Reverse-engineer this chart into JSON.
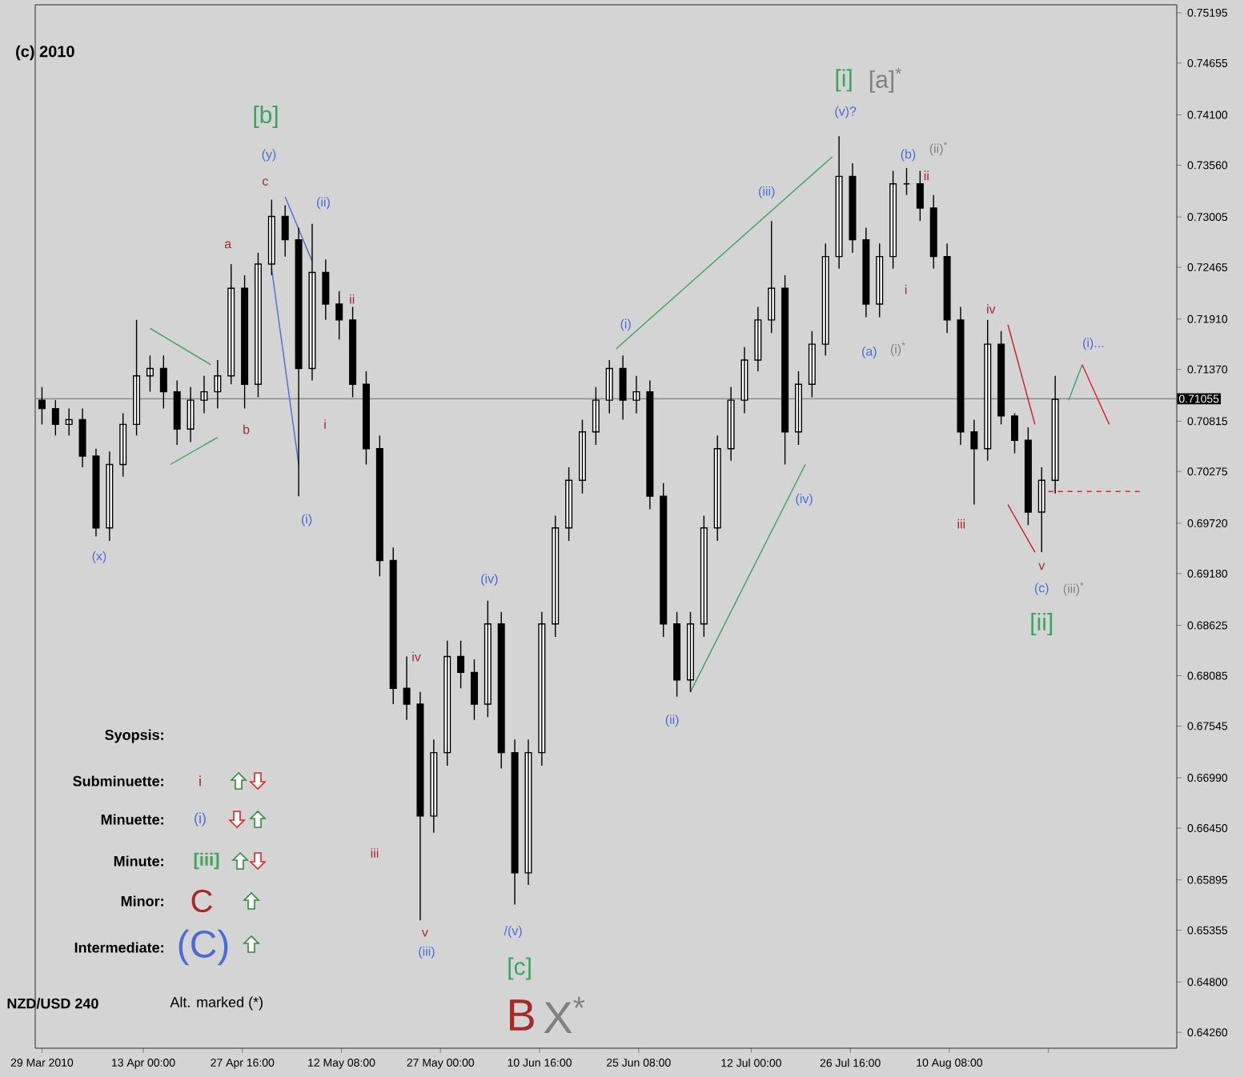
{
  "chart_data": {
    "type": "candlestick",
    "title": "(c) 2010",
    "x": [
      "2010-03-29",
      "2010-03-31",
      "2010-04-02",
      "2010-04-04",
      "2010-04-06",
      "2010-04-08",
      "2010-04-10",
      "2010-04-12",
      "2010-04-14",
      "2010-04-16",
      "2010-04-18",
      "2010-04-20",
      "2010-04-22",
      "2010-04-24",
      "2010-04-26",
      "2010-04-28",
      "2010-04-30",
      "2010-05-02",
      "2010-05-04",
      "2010-05-06",
      "2010-05-08",
      "2010-05-10",
      "2010-05-12",
      "2010-05-14",
      "2010-05-16",
      "2010-05-18",
      "2010-05-20",
      "2010-05-22",
      "2010-05-24",
      "2010-05-26",
      "2010-05-28",
      "2010-05-30",
      "2010-06-01",
      "2010-06-03",
      "2010-06-05",
      "2010-06-07",
      "2010-06-09",
      "2010-06-11",
      "2010-06-13",
      "2010-06-15",
      "2010-06-17",
      "2010-06-19",
      "2010-06-21",
      "2010-06-23",
      "2010-06-25",
      "2010-06-27",
      "2010-06-29",
      "2010-07-01",
      "2010-07-03",
      "2010-07-05",
      "2010-07-07",
      "2010-07-09",
      "2010-07-11",
      "2010-07-13",
      "2010-07-15",
      "2010-07-17",
      "2010-07-19",
      "2010-07-21",
      "2010-07-23",
      "2010-07-25",
      "2010-07-27",
      "2010-07-29",
      "2010-07-31",
      "2010-08-02",
      "2010-08-04",
      "2010-08-06",
      "2010-08-08",
      "2010-08-10",
      "2010-08-12",
      "2010-08-14",
      "2010-08-16",
      "2010-08-18",
      "2010-08-20",
      "2010-08-22",
      "2010-08-24",
      "2010-08-26"
    ],
    "ohlc": [
      [
        0.7104,
        0.7118,
        0.7078,
        0.7095
      ],
      [
        0.7095,
        0.7104,
        0.7066,
        0.7078
      ],
      [
        0.7078,
        0.7095,
        0.7066,
        0.7083
      ],
      [
        0.7083,
        0.7095,
        0.7032,
        0.7044
      ],
      [
        0.7044,
        0.7052,
        0.6958,
        0.6967
      ],
      [
        0.6967,
        0.7049,
        0.6953,
        0.7035
      ],
      [
        0.7035,
        0.709,
        0.7022,
        0.7078
      ],
      [
        0.7078,
        0.719,
        0.7066,
        0.713
      ],
      [
        0.713,
        0.7152,
        0.7113,
        0.7138
      ],
      [
        0.7138,
        0.7152,
        0.7095,
        0.7113
      ],
      [
        0.7113,
        0.7125,
        0.7056,
        0.7073
      ],
      [
        0.7073,
        0.7118,
        0.7059,
        0.7104
      ],
      [
        0.7104,
        0.713,
        0.709,
        0.7113
      ],
      [
        0.7113,
        0.7147,
        0.7095,
        0.713
      ],
      [
        0.713,
        0.725,
        0.7121,
        0.7224
      ],
      [
        0.7224,
        0.7238,
        0.7095,
        0.7121
      ],
      [
        0.7121,
        0.7262,
        0.7107,
        0.725
      ],
      [
        0.725,
        0.7319,
        0.7238,
        0.7301
      ],
      [
        0.7301,
        0.7313,
        0.7258,
        0.7276
      ],
      [
        0.7276,
        0.7289,
        0.7001,
        0.7138
      ],
      [
        0.7138,
        0.7293,
        0.7125,
        0.7241
      ],
      [
        0.7241,
        0.7255,
        0.719,
        0.7207
      ],
      [
        0.7207,
        0.7221,
        0.7169,
        0.719
      ],
      [
        0.719,
        0.7204,
        0.7107,
        0.7121
      ],
      [
        0.7121,
        0.7135,
        0.7035,
        0.7052
      ],
      [
        0.7052,
        0.7066,
        0.6915,
        0.6932
      ],
      [
        0.6932,
        0.6946,
        0.6778,
        0.6795
      ],
      [
        0.6795,
        0.6829,
        0.6761,
        0.6778
      ],
      [
        0.6778,
        0.6791,
        0.6546,
        0.6658
      ],
      [
        0.6658,
        0.674,
        0.664,
        0.6726
      ],
      [
        0.6726,
        0.6846,
        0.6712,
        0.6829
      ],
      [
        0.6829,
        0.6846,
        0.6795,
        0.6812
      ],
      [
        0.6812,
        0.6826,
        0.6761,
        0.6778
      ],
      [
        0.6778,
        0.6889,
        0.6764,
        0.6864
      ],
      [
        0.6864,
        0.6877,
        0.6709,
        0.6726
      ],
      [
        0.6726,
        0.674,
        0.6563,
        0.6597
      ],
      [
        0.6597,
        0.674,
        0.6584,
        0.6726
      ],
      [
        0.6726,
        0.6877,
        0.6712,
        0.6864
      ],
      [
        0.6864,
        0.698,
        0.685,
        0.6967
      ],
      [
        0.6967,
        0.7032,
        0.6953,
        0.7018
      ],
      [
        0.7018,
        0.7083,
        0.7004,
        0.707
      ],
      [
        0.707,
        0.7118,
        0.7056,
        0.7104
      ],
      [
        0.7104,
        0.7147,
        0.709,
        0.7138
      ],
      [
        0.7138,
        0.7152,
        0.7083,
        0.7104
      ],
      [
        0.7104,
        0.713,
        0.709,
        0.7113
      ],
      [
        0.7113,
        0.7125,
        0.6987,
        0.7001
      ],
      [
        0.7001,
        0.7015,
        0.685,
        0.6864
      ],
      [
        0.6864,
        0.6877,
        0.6786,
        0.6804
      ],
      [
        0.6804,
        0.6877,
        0.6791,
        0.6864
      ],
      [
        0.6864,
        0.698,
        0.685,
        0.6967
      ],
      [
        0.6967,
        0.7066,
        0.6953,
        0.7052
      ],
      [
        0.7052,
        0.7118,
        0.7039,
        0.7104
      ],
      [
        0.7104,
        0.7161,
        0.709,
        0.7147
      ],
      [
        0.7147,
        0.7204,
        0.7135,
        0.719
      ],
      [
        0.719,
        0.7296,
        0.7176,
        0.7224
      ],
      [
        0.7224,
        0.7238,
        0.7035,
        0.707
      ],
      [
        0.707,
        0.7135,
        0.7056,
        0.7121
      ],
      [
        0.7121,
        0.7178,
        0.7107,
        0.7164
      ],
      [
        0.7164,
        0.7272,
        0.7152,
        0.7258
      ],
      [
        0.7258,
        0.7387,
        0.7245,
        0.7344
      ],
      [
        0.7344,
        0.7358,
        0.7262,
        0.7276
      ],
      [
        0.7276,
        0.7289,
        0.7193,
        0.7207
      ],
      [
        0.7207,
        0.7272,
        0.7193,
        0.7258
      ],
      [
        0.7258,
        0.735,
        0.7245,
        0.7336
      ],
      [
        0.7336,
        0.7353,
        0.7324,
        0.7336
      ],
      [
        0.7336,
        0.735,
        0.7296,
        0.731
      ],
      [
        0.731,
        0.7324,
        0.7245,
        0.7258
      ],
      [
        0.7258,
        0.7272,
        0.7176,
        0.719
      ],
      [
        0.719,
        0.7204,
        0.7056,
        0.707
      ],
      [
        0.707,
        0.7083,
        0.6992,
        0.7052
      ],
      [
        0.7052,
        0.719,
        0.7039,
        0.7164
      ],
      [
        0.7164,
        0.7178,
        0.7078,
        0.7087
      ],
      [
        0.7087,
        0.709,
        0.7047,
        0.7061
      ],
      [
        0.7061,
        0.7075,
        0.697,
        0.6984
      ],
      [
        0.6984,
        0.7032,
        0.6941,
        0.7018
      ],
      [
        0.7018,
        0.713,
        0.7004,
        0.7105
      ]
    ],
    "series": [
      {
        "type": "line",
        "color": "#3ba55c",
        "x": [
          "2010-04-14",
          "2010-04-23"
        ],
        "values": [
          0.7181,
          0.7142
        ]
      },
      {
        "type": "line",
        "color": "#3ba55c",
        "x": [
          "2010-04-17",
          "2010-04-24"
        ],
        "values": [
          0.7035,
          0.7064
        ]
      },
      {
        "type": "line",
        "color": "#3ba55c",
        "x": [
          "2010-06-22",
          "2010-07-24"
        ],
        "values": [
          0.7159,
          0.7365
        ]
      },
      {
        "type": "line",
        "color": "#3ba55c",
        "x": [
          "2010-07-03",
          "2010-07-20"
        ],
        "values": [
          0.6791,
          0.7035
        ]
      },
      {
        "type": "line",
        "color": "#3ba55c",
        "x": [
          "2010-08-28",
          "2010-08-30"
        ],
        "values": [
          0.7104,
          0.7142
        ]
      },
      {
        "type": "line",
        "color": "#4a6cd4",
        "x": [
          "2010-05-04",
          "2010-05-08"
        ],
        "values": [
          0.7322,
          0.7253
        ]
      },
      {
        "type": "line",
        "color": "#4a6cd4",
        "x": [
          "2010-05-02",
          "2010-05-06"
        ],
        "values": [
          0.7245,
          0.7035
        ]
      },
      {
        "type": "line",
        "color": "#c02020",
        "x": [
          "2010-08-19",
          "2010-08-23"
        ],
        "values": [
          0.7185,
          0.7078
        ]
      },
      {
        "type": "line",
        "color": "#c02020",
        "x": [
          "2010-08-19",
          "2010-08-23"
        ],
        "values": [
          0.6992,
          0.6941
        ]
      },
      {
        "type": "line",
        "color": "#e02020",
        "x": [
          "2010-08-30",
          "2010-09-03"
        ],
        "values": [
          0.7142,
          0.7078
        ]
      },
      {
        "type": "line",
        "color": "#e02020",
        "line_style": "dashed",
        "x": [
          "2010-08-25",
          "2010-09-08"
        ],
        "values": [
          0.7006,
          0.7006
        ]
      }
    ],
    "ref_lines": [
      {
        "axis": "y",
        "value": 0.71055,
        "label": "0.71055",
        "color": "#808080"
      }
    ],
    "xlim": [
      "2010-03-28",
      "2010-09-13"
    ],
    "ylim": [
      0.6409,
      0.7528
    ],
    "xticks": [
      {
        "value": "2010-03-29",
        "label": "29 Mar 2010"
      },
      {
        "value": "2010-04-13T00:00",
        "label": "13 Apr 00:00"
      },
      {
        "value": "2010-04-27T16:00",
        "label": "27 Apr 16:00"
      },
      {
        "value": "2010-05-12T08:00",
        "label": "12 May 08:00"
      },
      {
        "value": "2010-05-27T00:00",
        "label": "27 May 00:00"
      },
      {
        "value": "2010-06-10T16:00",
        "label": "10 Jun 16:00"
      },
      {
        "value": "2010-06-25T08:00",
        "label": "25 Jun 08:00"
      },
      {
        "value": "2010-07-12T00:00",
        "label": "12 Jul 00:00"
      },
      {
        "value": "2010-07-26T16:00",
        "label": "26 Jul 16:00"
      },
      {
        "value": "2010-08-10T08:00",
        "label": "10 Aug 08:00"
      },
      {
        "value": "2010-08-25T00:00",
        "label": null
      }
    ],
    "yticks": [
      {
        "value": 0.75195,
        "label": "0.75195"
      },
      {
        "value": 0.74655,
        "label": "0.74655"
      },
      {
        "value": 0.741,
        "label": "0.74100"
      },
      {
        "value": 0.7356,
        "label": "0.73560"
      },
      {
        "value": 0.73005,
        "label": "0.73005"
      },
      {
        "value": 0.72465,
        "label": "0.72465"
      },
      {
        "value": 0.7191,
        "label": "0.71910"
      },
      {
        "value": 0.7137,
        "label": "0.71370"
      },
      {
        "value": 0.70815,
        "label": "0.70815"
      },
      {
        "value": 0.70275,
        "label": "0.70275"
      },
      {
        "value": 0.6972,
        "label": "0.69720"
      },
      {
        "value": 0.6918,
        "label": "0.69180"
      },
      {
        "value": 0.68625,
        "label": "0.68625"
      },
      {
        "value": 0.68085,
        "label": "0.68085"
      },
      {
        "value": 0.67545,
        "label": "0.67545"
      },
      {
        "value": 0.6699,
        "label": "0.66990"
      },
      {
        "value": 0.6645,
        "label": "0.66450"
      },
      {
        "value": 0.65895,
        "label": "0.65895"
      },
      {
        "value": 0.65355,
        "label": "0.65355"
      },
      {
        "value": 0.648,
        "label": "0.64800"
      },
      {
        "value": 0.6426,
        "label": "0.64260"
      }
    ],
    "annotations": [
      {
        "text": "c",
        "x": "2010-05-02",
        "y": 0.7319
      },
      {
        "text": "a",
        "x": "2010-04-26",
        "y": 0.725
      },
      {
        "text": "b",
        "x": "2010-04-28",
        "y": 0.7095
      },
      {
        "text": "(x)",
        "x": "2010-04-06",
        "y": 0.6958
      },
      {
        "text": "(ii)",
        "x": "2010-05-08",
        "y": 0.7293
      },
      {
        "text": "ii",
        "x": "2010-05-12",
        "y": 0.7221
      },
      {
        "text": "(i)",
        "x": "2010-05-06",
        "y": 0.7001
      },
      {
        "text": "iv",
        "x": "2010-05-22",
        "y": 0.6829
      },
      {
        "text": "v",
        "x": "2010-05-24",
        "y": 0.6546
      },
      {
        "text": "(iii)",
        "x": "2010-05-24",
        "y": 0.6546
      },
      {
        "text": "(iv)",
        "x": "2010-06-03",
        "y": 0.6889
      },
      {
        "text": "/(v)",
        "x": "2010-06-07",
        "y": 0.6563
      },
      {
        "text": "[c]",
        "x": "2010-06-07",
        "y": 0.6563
      },
      {
        "text": "B",
        "x": "2010-06-07",
        "y": 0.6563
      },
      {
        "text": "X$^{*}$",
        "x": "2010-06-07",
        "y": 0.6563
      },
      {
        "text": "(i)",
        "x": "2010-06-22",
        "y": 0.7159
      },
      {
        "text": "(ii)",
        "x": "2010-07-01",
        "y": 0.6786
      },
      {
        "text": "(iii)",
        "x": "2010-07-15",
        "y": 0.7296
      },
      {
        "text": "(iv)",
        "x": "2010-07-17",
        "y": 0.7035
      },
      {
        "text": "(v)?",
        "x": "2010-07-25",
        "y": 0.7387
      },
      {
        "text": "[i]",
        "x": "2010-07-25",
        "y": 0.7387
      },
      {
        "text": "[a]$^{*}$",
        "x": "2010-07-25",
        "y": 0.7387
      },
      {
        "text": "(a)",
        "x": "2010-07-29",
        "y": 0.7193
      },
      {
        "text": "(i)$^{*}$",
        "x": "2010-07-29",
        "y": 0.7193
      },
      {
        "text": "(b)",
        "x": "2010-08-04",
        "y": 0.7353
      },
      {
        "text": "(ii)$^{*}$",
        "x": "2010-08-04",
        "y": 0.7353
      },
      {
        "text": "ii",
        "x": "2010-08-06",
        "y": 0.735
      },
      {
        "text": "i",
        "x": "2010-08-02",
        "y": 0.7245
      },
      {
        "text": "iii",
        "x": "2010-08-14",
        "y": 0.6992
      },
      {
        "text": "iv",
        "x": "2010-08-16",
        "y": 0.719
      },
      {
        "text": "v",
        "x": "2010-08-24",
        "y": 0.6941
      },
      {
        "text": "(c)",
        "x": "2010-08-24",
        "y": 0.6941
      },
      {
        "text": "(iii)$^{*}$",
        "x": "2010-08-24",
        "y": 0.6941
      },
      {
        "text": "[ii]",
        "x": "2010-08-24",
        "y": 0.6941
      },
      {
        "text": "(i)...",
        "x": "2010-08-30",
        "y": 0.7142
      },
      "Syopsis:",
      "Subminuette:",
      "Minuette:",
      "Minute:",
      "Minor:",
      "Intermediate:",
      "i",
      "(i)",
      "[iii]",
      "C",
      "(C)",
      "NZD/USD 240",
      "Alt. marked (*)",
      "[b]",
      "(y)",
      "i",
      "iii"
    ]
  }
}
